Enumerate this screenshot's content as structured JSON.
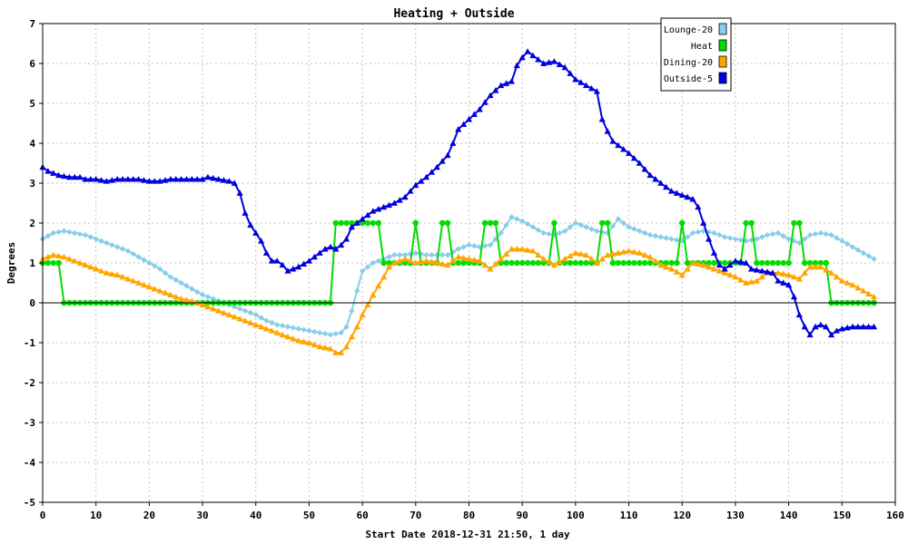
{
  "chart_data": {
    "type": "line",
    "title": "Heating + Outside",
    "xlabel": "Start Date 2018-12-31 21:50, 1 day",
    "ylabel": "Degrees",
    "xlim": [
      0,
      160
    ],
    "ylim": [
      -5,
      7
    ],
    "x_ticks": [
      "0",
      "10",
      "20",
      "30",
      "40",
      "50",
      "60",
      "70",
      "80",
      "90",
      "100",
      "110",
      "120",
      "130",
      "140",
      "150",
      "160"
    ],
    "y_ticks": [
      "-5",
      "-4",
      "-3",
      "-2",
      "-1",
      "0",
      "1",
      "2",
      "3",
      "4",
      "5",
      "6",
      "7"
    ],
    "grid": true,
    "legend_position": "top-right",
    "colors": {
      "frame": "#000000",
      "grid": "#c0c0c0",
      "zero_line": "#000000"
    },
    "series": [
      {
        "name": "Lounge-20",
        "color": "#87ceeb",
        "marker": "diamond",
        "points": [
          [
            0,
            1.6
          ],
          [
            2,
            1.75
          ],
          [
            4,
            1.8
          ],
          [
            6,
            1.75
          ],
          [
            8,
            1.7
          ],
          [
            10,
            1.6
          ],
          [
            12,
            1.5
          ],
          [
            14,
            1.4
          ],
          [
            16,
            1.3
          ],
          [
            18,
            1.15
          ],
          [
            20,
            1.0
          ],
          [
            22,
            0.85
          ],
          [
            24,
            0.65
          ],
          [
            26,
            0.5
          ],
          [
            28,
            0.35
          ],
          [
            30,
            0.2
          ],
          [
            32,
            0.1
          ],
          [
            34,
            0.0
          ],
          [
            36,
            -0.1
          ],
          [
            38,
            -0.2
          ],
          [
            40,
            -0.3
          ],
          [
            42,
            -0.45
          ],
          [
            44,
            -0.55
          ],
          [
            46,
            -0.6
          ],
          [
            48,
            -0.65
          ],
          [
            50,
            -0.7
          ],
          [
            52,
            -0.75
          ],
          [
            54,
            -0.8
          ],
          [
            56,
            -0.75
          ],
          [
            57,
            -0.6
          ],
          [
            58,
            -0.2
          ],
          [
            59,
            0.3
          ],
          [
            60,
            0.8
          ],
          [
            62,
            1.0
          ],
          [
            64,
            1.1
          ],
          [
            66,
            1.2
          ],
          [
            68,
            1.2
          ],
          [
            70,
            1.25
          ],
          [
            72,
            1.2
          ],
          [
            74,
            1.2
          ],
          [
            76,
            1.2
          ],
          [
            78,
            1.35
          ],
          [
            80,
            1.45
          ],
          [
            82,
            1.4
          ],
          [
            84,
            1.45
          ],
          [
            86,
            1.75
          ],
          [
            88,
            2.15
          ],
          [
            90,
            2.05
          ],
          [
            92,
            1.9
          ],
          [
            94,
            1.75
          ],
          [
            96,
            1.7
          ],
          [
            98,
            1.8
          ],
          [
            100,
            2.0
          ],
          [
            102,
            1.9
          ],
          [
            104,
            1.8
          ],
          [
            106,
            1.75
          ],
          [
            108,
            2.1
          ],
          [
            110,
            1.9
          ],
          [
            112,
            1.8
          ],
          [
            114,
            1.7
          ],
          [
            116,
            1.65
          ],
          [
            118,
            1.6
          ],
          [
            120,
            1.55
          ],
          [
            122,
            1.75
          ],
          [
            124,
            1.8
          ],
          [
            126,
            1.75
          ],
          [
            128,
            1.65
          ],
          [
            130,
            1.6
          ],
          [
            132,
            1.55
          ],
          [
            134,
            1.6
          ],
          [
            136,
            1.7
          ],
          [
            138,
            1.75
          ],
          [
            140,
            1.6
          ],
          [
            142,
            1.5
          ],
          [
            144,
            1.7
          ],
          [
            146,
            1.75
          ],
          [
            148,
            1.7
          ],
          [
            150,
            1.55
          ],
          [
            152,
            1.4
          ],
          [
            154,
            1.25
          ],
          [
            156,
            1.1
          ]
        ]
      },
      {
        "name": "Heat",
        "color": "#00dd00",
        "marker": "circle",
        "points": [
          [
            0,
            1
          ],
          [
            3,
            1
          ],
          [
            4,
            0
          ],
          [
            54,
            0
          ],
          [
            55,
            2
          ],
          [
            63,
            2
          ],
          [
            64,
            1
          ],
          [
            69,
            1
          ],
          [
            70,
            2
          ],
          [
            71,
            1
          ],
          [
            74,
            1
          ],
          [
            75,
            2
          ],
          [
            76,
            2
          ],
          [
            77,
            1
          ],
          [
            82,
            1
          ],
          [
            83,
            2
          ],
          [
            85,
            2
          ],
          [
            86,
            1
          ],
          [
            95,
            1
          ],
          [
            96,
            2
          ],
          [
            97,
            1
          ],
          [
            104,
            1
          ],
          [
            105,
            2
          ],
          [
            106,
            2
          ],
          [
            107,
            1
          ],
          [
            119,
            1
          ],
          [
            120,
            2
          ],
          [
            121,
            1
          ],
          [
            131,
            1
          ],
          [
            132,
            2
          ],
          [
            133,
            2
          ],
          [
            134,
            1
          ],
          [
            140,
            1
          ],
          [
            141,
            2
          ],
          [
            142,
            2
          ],
          [
            143,
            1
          ],
          [
            147,
            1
          ],
          [
            148,
            0
          ],
          [
            156,
            0
          ]
        ]
      },
      {
        "name": "Dining-20",
        "color": "#ffa500",
        "marker": "triangle",
        "points": [
          [
            0,
            1.1
          ],
          [
            2,
            1.2
          ],
          [
            4,
            1.15
          ],
          [
            6,
            1.05
          ],
          [
            8,
            0.95
          ],
          [
            10,
            0.85
          ],
          [
            12,
            0.75
          ],
          [
            14,
            0.7
          ],
          [
            16,
            0.6
          ],
          [
            18,
            0.5
          ],
          [
            20,
            0.4
          ],
          [
            22,
            0.3
          ],
          [
            24,
            0.2
          ],
          [
            26,
            0.1
          ],
          [
            28,
            0.05
          ],
          [
            30,
            -0.05
          ],
          [
            32,
            -0.15
          ],
          [
            34,
            -0.25
          ],
          [
            36,
            -0.35
          ],
          [
            38,
            -0.45
          ],
          [
            40,
            -0.55
          ],
          [
            42,
            -0.65
          ],
          [
            44,
            -0.75
          ],
          [
            46,
            -0.85
          ],
          [
            48,
            -0.95
          ],
          [
            50,
            -1.0
          ],
          [
            52,
            -1.1
          ],
          [
            54,
            -1.15
          ],
          [
            55,
            -1.25
          ],
          [
            56,
            -1.25
          ],
          [
            57,
            -1.1
          ],
          [
            58,
            -0.85
          ],
          [
            59,
            -0.6
          ],
          [
            60,
            -0.3
          ],
          [
            62,
            0.2
          ],
          [
            64,
            0.65
          ],
          [
            65,
            0.9
          ],
          [
            66,
            1.0
          ],
          [
            68,
            1.1
          ],
          [
            70,
            1.0
          ],
          [
            72,
            1.05
          ],
          [
            74,
            1.0
          ],
          [
            76,
            0.95
          ],
          [
            78,
            1.15
          ],
          [
            80,
            1.1
          ],
          [
            82,
            1.05
          ],
          [
            84,
            0.85
          ],
          [
            86,
            1.1
          ],
          [
            88,
            1.35
          ],
          [
            90,
            1.35
          ],
          [
            92,
            1.3
          ],
          [
            94,
            1.1
          ],
          [
            96,
            0.95
          ],
          [
            98,
            1.1
          ],
          [
            100,
            1.25
          ],
          [
            102,
            1.2
          ],
          [
            104,
            1.0
          ],
          [
            106,
            1.2
          ],
          [
            108,
            1.25
          ],
          [
            110,
            1.3
          ],
          [
            112,
            1.25
          ],
          [
            114,
            1.15
          ],
          [
            116,
            0.95
          ],
          [
            118,
            0.85
          ],
          [
            120,
            0.7
          ],
          [
            122,
            1.0
          ],
          [
            124,
            0.95
          ],
          [
            126,
            0.85
          ],
          [
            128,
            0.75
          ],
          [
            130,
            0.65
          ],
          [
            132,
            0.5
          ],
          [
            134,
            0.55
          ],
          [
            136,
            0.75
          ],
          [
            138,
            0.75
          ],
          [
            140,
            0.7
          ],
          [
            142,
            0.6
          ],
          [
            144,
            0.9
          ],
          [
            146,
            0.9
          ],
          [
            148,
            0.75
          ],
          [
            150,
            0.55
          ],
          [
            152,
            0.45
          ],
          [
            154,
            0.3
          ],
          [
            156,
            0.15
          ]
        ]
      },
      {
        "name": "Outside-5",
        "color": "#0000dd",
        "marker": "triangle",
        "points": [
          [
            0,
            3.4
          ],
          [
            1,
            3.3
          ],
          [
            2,
            3.25
          ],
          [
            3,
            3.2
          ],
          [
            5,
            3.15
          ],
          [
            7,
            3.15
          ],
          [
            8,
            3.1
          ],
          [
            10,
            3.1
          ],
          [
            12,
            3.05
          ],
          [
            14,
            3.1
          ],
          [
            16,
            3.1
          ],
          [
            18,
            3.1
          ],
          [
            20,
            3.05
          ],
          [
            22,
            3.05
          ],
          [
            24,
            3.1
          ],
          [
            26,
            3.1
          ],
          [
            28,
            3.1
          ],
          [
            30,
            3.1
          ],
          [
            31,
            3.15
          ],
          [
            33,
            3.1
          ],
          [
            35,
            3.05
          ],
          [
            36,
            3.0
          ],
          [
            37,
            2.75
          ],
          [
            38,
            2.25
          ],
          [
            39,
            1.95
          ],
          [
            40,
            1.75
          ],
          [
            41,
            1.55
          ],
          [
            42,
            1.25
          ],
          [
            43,
            1.05
          ],
          [
            44,
            1.05
          ],
          [
            45,
            0.95
          ],
          [
            46,
            0.8
          ],
          [
            47,
            0.85
          ],
          [
            48,
            0.9
          ],
          [
            50,
            1.05
          ],
          [
            52,
            1.25
          ],
          [
            53,
            1.35
          ],
          [
            54,
            1.4
          ],
          [
            55,
            1.35
          ],
          [
            56,
            1.45
          ],
          [
            57,
            1.6
          ],
          [
            58,
            1.9
          ],
          [
            60,
            2.1
          ],
          [
            62,
            2.3
          ],
          [
            64,
            2.4
          ],
          [
            66,
            2.5
          ],
          [
            68,
            2.65
          ],
          [
            70,
            2.95
          ],
          [
            72,
            3.15
          ],
          [
            74,
            3.4
          ],
          [
            76,
            3.7
          ],
          [
            77,
            4.0
          ],
          [
            78,
            4.35
          ],
          [
            80,
            4.6
          ],
          [
            82,
            4.85
          ],
          [
            84,
            5.2
          ],
          [
            86,
            5.45
          ],
          [
            88,
            5.55
          ],
          [
            89,
            5.95
          ],
          [
            90,
            6.15
          ],
          [
            91,
            6.3
          ],
          [
            92,
            6.2
          ],
          [
            94,
            6.0
          ],
          [
            96,
            6.05
          ],
          [
            98,
            5.9
          ],
          [
            100,
            5.6
          ],
          [
            102,
            5.45
          ],
          [
            104,
            5.3
          ],
          [
            105,
            4.6
          ],
          [
            106,
            4.3
          ],
          [
            107,
            4.05
          ],
          [
            108,
            3.95
          ],
          [
            110,
            3.75
          ],
          [
            112,
            3.5
          ],
          [
            114,
            3.2
          ],
          [
            116,
            3.0
          ],
          [
            118,
            2.8
          ],
          [
            120,
            2.7
          ],
          [
            122,
            2.6
          ],
          [
            123,
            2.4
          ],
          [
            124,
            2.0
          ],
          [
            125,
            1.6
          ],
          [
            126,
            1.25
          ],
          [
            127,
            0.95
          ],
          [
            128,
            0.85
          ],
          [
            130,
            1.05
          ],
          [
            132,
            1.0
          ],
          [
            133,
            0.85
          ],
          [
            135,
            0.8
          ],
          [
            137,
            0.75
          ],
          [
            138,
            0.55
          ],
          [
            140,
            0.45
          ],
          [
            141,
            0.15
          ],
          [
            142,
            -0.3
          ],
          [
            143,
            -0.6
          ],
          [
            144,
            -0.8
          ],
          [
            145,
            -0.6
          ],
          [
            146,
            -0.55
          ],
          [
            147,
            -0.6
          ],
          [
            148,
            -0.8
          ],
          [
            149,
            -0.7
          ],
          [
            150,
            -0.65
          ],
          [
            152,
            -0.6
          ],
          [
            154,
            -0.6
          ],
          [
            156,
            -0.6
          ]
        ]
      }
    ]
  }
}
